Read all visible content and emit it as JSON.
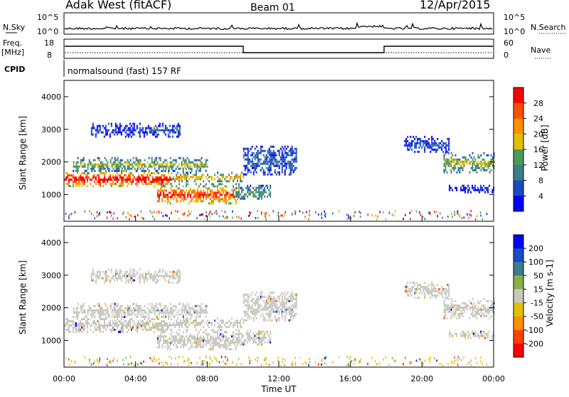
{
  "header": {
    "station": "Adak West (fitACF)",
    "beam": "Beam 01",
    "date": "12/Apr/2015"
  },
  "noise_panel": {
    "left_label": "N.Sky",
    "left_ticks": [
      "10^5",
      "10^0"
    ],
    "right_ticks": [
      "10^5",
      "10^0"
    ],
    "right_label": "N.Search"
  },
  "freq_panel": {
    "left_label_1": "Freq.",
    "left_label_2": "[MHz]",
    "left_ticks": [
      "18",
      "8"
    ],
    "right_ticks": [
      "60",
      "0"
    ],
    "right_label": "Nave",
    "cpid_label": "CPID",
    "cpid_text": "normalsound (fast) 157 RF"
  },
  "chart_data": [
    {
      "type": "heatmap",
      "name": "power",
      "ylabel": "Slant Range [km]",
      "yticks": [
        "1000",
        "2000",
        "3000",
        "4000"
      ],
      "ylim": [
        180,
        4500
      ],
      "xlim": [
        0,
        24
      ],
      "colorbar_label": "Power [dB]",
      "colorbar_ticks": [
        "28",
        "24",
        "20",
        "16",
        "12",
        "8",
        "4"
      ],
      "colorbar_colors": [
        "#0000ff",
        "#1c4ac0",
        "#3a7f8a",
        "#4a9a5a",
        "#e0c000",
        "#ff9000",
        "#ff5000",
        "#ff0000"
      ],
      "regions": [
        {
          "t0": 0.0,
          "t1": 6.0,
          "r0": 1250,
          "r1": 1750,
          "level": 0.85
        },
        {
          "t0": 6.0,
          "t1": 10.0,
          "r0": 1400,
          "r1": 1700,
          "level": 0.55
        },
        {
          "t0": 5.2,
          "t1": 9.8,
          "r0": 700,
          "r1": 1350,
          "level": 0.75
        },
        {
          "t0": 9.5,
          "t1": 11.5,
          "r0": 850,
          "r1": 1300,
          "level": 0.35
        },
        {
          "t0": 0.5,
          "t1": 8.0,
          "r0": 1750,
          "r1": 2150,
          "level": 0.45
        },
        {
          "t0": 1.5,
          "t1": 6.5,
          "r0": 2800,
          "r1": 3200,
          "level": 0.15
        },
        {
          "t0": 10.0,
          "t1": 13.0,
          "r0": 1600,
          "r1": 2500,
          "level": 0.2
        },
        {
          "t0": 21.2,
          "t1": 24.0,
          "r0": 1700,
          "r1": 2300,
          "level": 0.45
        },
        {
          "t0": 19.0,
          "t1": 21.5,
          "r0": 2300,
          "r1": 2800,
          "level": 0.15
        },
        {
          "t0": 21.5,
          "t1": 24.0,
          "r0": 1100,
          "r1": 1300,
          "level": 0.1
        }
      ]
    },
    {
      "type": "heatmap",
      "name": "velocity",
      "ylabel": "Slant Range [km]",
      "yticks": [
        "1000",
        "2000",
        "3000",
        "4000"
      ],
      "ylim": [
        180,
        4500
      ],
      "xlim": [
        0,
        24
      ],
      "colorbar_label": "Velocity [m s-1]",
      "colorbar_ticks": [
        "200",
        "100",
        "50",
        "15",
        "-15",
        "-50",
        "-100",
        "-200"
      ],
      "colorbar_colors": [
        "#ff0000",
        "#ff4000",
        "#ff9000",
        "#e0c000",
        "#c8c8c0",
        "#8ab04a",
        "#3a7f8a",
        "#1c4ac0",
        "#0000ff"
      ],
      "xticks": [
        "00:00",
        "04:00",
        "08:00",
        "12:00",
        "16:00",
        "20:00",
        "00:00"
      ],
      "xlabel": "Time UT"
    }
  ]
}
